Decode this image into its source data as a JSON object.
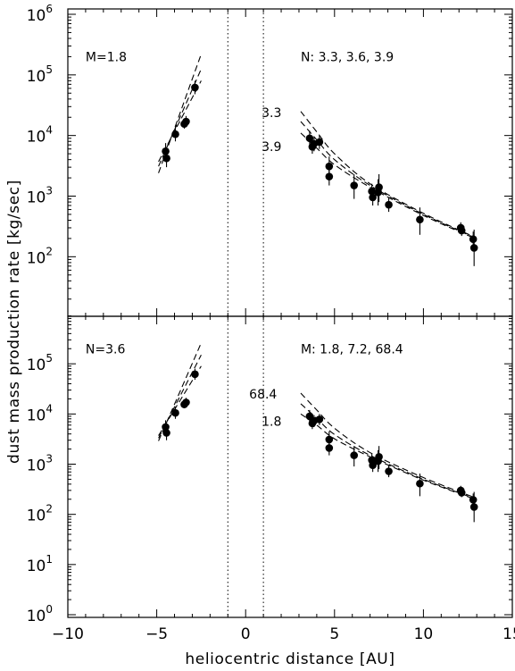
{
  "chart_data": [
    {
      "type": "scatter",
      "panel": "top",
      "xlabel": "",
      "ylabel": "dust mass production rate [kg/sec]",
      "xlim": [
        -10,
        15
      ],
      "ylim": [
        1,
        1000000
      ],
      "yscale": "log",
      "y_tick_labels": [
        {
          "base": "10",
          "exp": "6",
          "value": 1000000
        },
        {
          "base": "10",
          "exp": "5",
          "value": 100000
        },
        {
          "base": "10",
          "exp": "4",
          "value": 10000
        },
        {
          "base": "10",
          "exp": "3",
          "value": 1000
        },
        {
          "base": "10",
          "exp": "2",
          "value": 100
        }
      ],
      "vertical_lines": [
        -1,
        1
      ],
      "annotations": [
        {
          "text": "M=1.8",
          "x": -9.0,
          "y": 200000
        },
        {
          "text": "N: 3.3, 3.6, 3.9",
          "x": 3.1,
          "y": 200000
        },
        {
          "text": "3.3",
          "x": 0.9,
          "y": 24000
        },
        {
          "text": "3.9",
          "x": 0.9,
          "y": 6600
        }
      ],
      "observations": [
        {
          "x": -4.5,
          "y": 5500,
          "err": [
            4000,
            7500
          ]
        },
        {
          "x": -4.45,
          "y": 4200,
          "err": [
            3000,
            5800
          ]
        },
        {
          "x": -3.95,
          "y": 10500,
          "err": [
            8000,
            14000
          ]
        },
        {
          "x": -3.45,
          "y": 15500,
          "err": [
            13000,
            19000
          ]
        },
        {
          "x": -3.35,
          "y": 17000,
          "err": [
            14000,
            21000
          ]
        },
        {
          "x": -2.85,
          "y": 62000,
          "err": [
            48000,
            80000
          ]
        },
        {
          "x": 3.6,
          "y": 9000,
          "err": [
            6500,
            12000
          ]
        },
        {
          "x": 3.75,
          "y": 6500,
          "err": [
            5000,
            9000
          ]
        },
        {
          "x": 3.85,
          "y": 7300,
          "err": [
            5500,
            9500
          ]
        },
        {
          "x": 4.15,
          "y": 7800,
          "err": [
            6000,
            10000
          ]
        },
        {
          "x": 4.7,
          "y": 3100,
          "err": [
            2300,
            4500
          ]
        },
        {
          "x": 4.7,
          "y": 2100,
          "err": [
            1500,
            3000
          ]
        },
        {
          "x": 6.1,
          "y": 1500,
          "err": [
            900,
            2300
          ]
        },
        {
          "x": 7.1,
          "y": 1200,
          "err": [
            900,
            1600
          ]
        },
        {
          "x": 7.15,
          "y": 950,
          "err": [
            700,
            1300
          ]
        },
        {
          "x": 7.45,
          "y": 1150,
          "err": [
            700,
            1900
          ]
        },
        {
          "x": 7.5,
          "y": 1400,
          "err": [
            800,
            2300
          ]
        },
        {
          "x": 8.05,
          "y": 720,
          "err": [
            550,
            950
          ]
        },
        {
          "x": 9.8,
          "y": 410,
          "err": [
            230,
            650
          ]
        },
        {
          "x": 12.1,
          "y": 300,
          "err": [
            240,
            370
          ]
        },
        {
          "x": 12.15,
          "y": 270,
          "err": [
            220,
            330
          ]
        },
        {
          "x": 12.8,
          "y": 195,
          "err": [
            140,
            260
          ]
        },
        {
          "x": 12.85,
          "y": 140,
          "err": [
            70,
            280
          ]
        }
      ],
      "series": [
        {
          "label": "3.3",
          "pre": [
            [
              -4.9,
              2400
            ],
            [
              -2.5,
              220000
            ]
          ],
          "post": [
            [
              3.1,
              25000
            ],
            [
              4.0,
              11500
            ],
            [
              5.0,
              5000
            ],
            [
              7.0,
              1600
            ],
            [
              10.0,
              520
            ],
            [
              12.9,
              210
            ]
          ]
        },
        {
          "label": "3.6",
          "pre": [
            [
              -4.9,
              3100
            ],
            [
              -2.5,
              125000
            ]
          ],
          "post": [
            [
              3.1,
              17000
            ],
            [
              4.0,
              8500
            ],
            [
              5.0,
              4000
            ],
            [
              7.0,
              1500
            ],
            [
              10.0,
              500
            ],
            [
              12.9,
              205
            ]
          ]
        },
        {
          "label": "3.9",
          "pre": [
            [
              -4.9,
              3700
            ],
            [
              -2.5,
              80000
            ]
          ],
          "post": [
            [
              3.1,
              11000
            ],
            [
              4.0,
              6200
            ],
            [
              5.0,
              3300
            ],
            [
              7.0,
              1400
            ],
            [
              10.0,
              480
            ],
            [
              12.9,
              200
            ]
          ]
        }
      ]
    },
    {
      "type": "scatter",
      "panel": "bottom",
      "xlabel": "heliocentric distance [AU]",
      "ylabel": "dust mass production rate [kg/sec]",
      "xlim": [
        -10,
        15
      ],
      "ylim": [
        1,
        1000000
      ],
      "yscale": "log",
      "x_tick_labels": [
        "−10",
        "−5",
        "0",
        "5",
        "10",
        "15"
      ],
      "x_tick_values": [
        -10,
        -5,
        0,
        5,
        10,
        15
      ],
      "y_tick_labels": [
        {
          "base": "10",
          "exp": "5",
          "value": 100000
        },
        {
          "base": "10",
          "exp": "4",
          "value": 10000
        },
        {
          "base": "10",
          "exp": "3",
          "value": 1000
        },
        {
          "base": "10",
          "exp": "2",
          "value": 100
        },
        {
          "base": "10",
          "exp": "1",
          "value": 10
        },
        {
          "base": "10",
          "exp": "0",
          "value": 1
        }
      ],
      "vertical_lines": [
        -1,
        1
      ],
      "annotations": [
        {
          "text": "N=3.6",
          "x": -9.0,
          "y": 200000
        },
        {
          "text": "M: 1.8, 7.2, 68.4",
          "x": 3.1,
          "y": 200000
        },
        {
          "text": "68.4",
          "x": 0.2,
          "y": 25000
        },
        {
          "text": "1.8",
          "x": 0.9,
          "y": 7200
        }
      ],
      "observations": [
        {
          "x": -4.5,
          "y": 5500,
          "err": [
            4000,
            7500
          ]
        },
        {
          "x": -4.45,
          "y": 4200,
          "err": [
            3000,
            5800
          ]
        },
        {
          "x": -3.95,
          "y": 10500,
          "err": [
            8000,
            14000
          ]
        },
        {
          "x": -3.45,
          "y": 15500,
          "err": [
            13000,
            19000
          ]
        },
        {
          "x": -3.35,
          "y": 17000,
          "err": [
            14000,
            21000
          ]
        },
        {
          "x": -2.85,
          "y": 62000,
          "err": [
            48000,
            80000
          ]
        },
        {
          "x": 3.6,
          "y": 9000,
          "err": [
            6500,
            12000
          ]
        },
        {
          "x": 3.75,
          "y": 6500,
          "err": [
            5000,
            9000
          ]
        },
        {
          "x": 3.85,
          "y": 7300,
          "err": [
            5500,
            9500
          ]
        },
        {
          "x": 4.15,
          "y": 7800,
          "err": [
            6000,
            10000
          ]
        },
        {
          "x": 4.7,
          "y": 3100,
          "err": [
            2300,
            4500
          ]
        },
        {
          "x": 4.7,
          "y": 2100,
          "err": [
            1500,
            3000
          ]
        },
        {
          "x": 6.1,
          "y": 1500,
          "err": [
            900,
            2300
          ]
        },
        {
          "x": 7.1,
          "y": 1200,
          "err": [
            900,
            1600
          ]
        },
        {
          "x": 7.15,
          "y": 950,
          "err": [
            700,
            1300
          ]
        },
        {
          "x": 7.45,
          "y": 1150,
          "err": [
            700,
            1900
          ]
        },
        {
          "x": 7.5,
          "y": 1400,
          "err": [
            800,
            2300
          ]
        },
        {
          "x": 8.05,
          "y": 720,
          "err": [
            550,
            950
          ]
        },
        {
          "x": 9.8,
          "y": 410,
          "err": [
            230,
            650
          ]
        },
        {
          "x": 12.1,
          "y": 300,
          "err": [
            240,
            370
          ]
        },
        {
          "x": 12.15,
          "y": 270,
          "err": [
            220,
            330
          ]
        },
        {
          "x": 12.8,
          "y": 195,
          "err": [
            140,
            260
          ]
        },
        {
          "x": 12.85,
          "y": 140,
          "err": [
            70,
            280
          ]
        }
      ],
      "series": [
        {
          "label": "68.4",
          "pre": [
            [
              -4.9,
              2900
            ],
            [
              -2.5,
              260000
            ]
          ],
          "post": [
            [
              3.1,
              26000
            ],
            [
              4.0,
              12000
            ],
            [
              5.0,
              5200
            ],
            [
              7.0,
              1700
            ],
            [
              10.0,
              540
            ],
            [
              12.9,
              215
            ]
          ]
        },
        {
          "label": "7.2",
          "pre": [
            [
              -4.9,
              3300
            ],
            [
              -2.5,
              150000
            ]
          ],
          "post": [
            [
              3.1,
              16000
            ],
            [
              4.0,
              8200
            ],
            [
              5.0,
              3900
            ],
            [
              7.0,
              1500
            ],
            [
              10.0,
              500
            ],
            [
              12.9,
              205
            ]
          ]
        },
        {
          "label": "1.8",
          "pre": [
            [
              -4.9,
              3700
            ],
            [
              -2.5,
              90000
            ]
          ],
          "post": [
            [
              3.1,
              10000
            ],
            [
              4.0,
              6000
            ],
            [
              5.0,
              3200
            ],
            [
              7.0,
              1400
            ],
            [
              10.0,
              480
            ],
            [
              12.9,
              200
            ]
          ]
        }
      ]
    }
  ]
}
